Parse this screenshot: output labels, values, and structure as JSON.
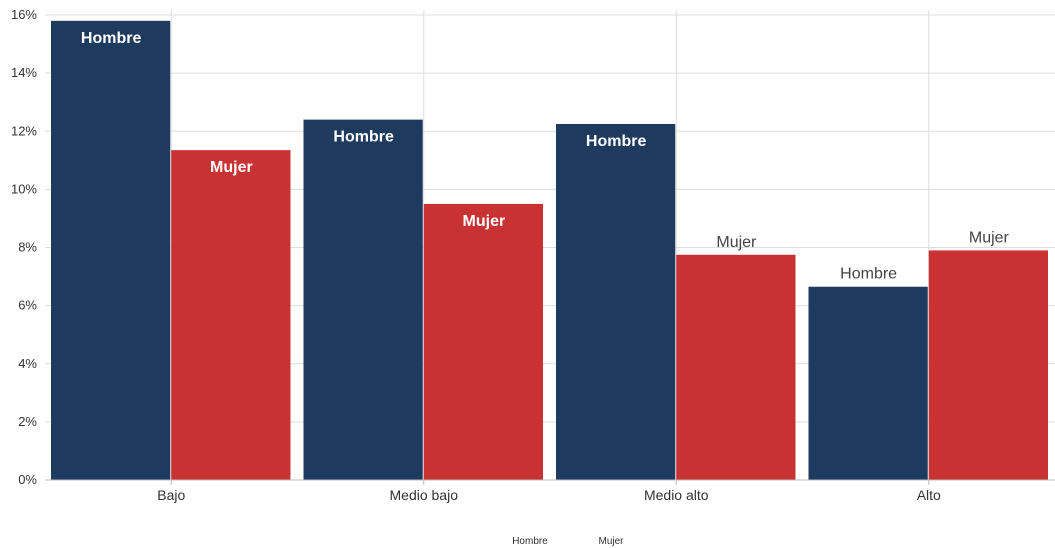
{
  "chart_data": {
    "type": "bar",
    "categories": [
      "Bajo",
      "Medio bajo",
      "Medio alto",
      "Alto"
    ],
    "series": [
      {
        "name": "Hombre",
        "color": "#1e3a5f",
        "values": [
          15.8,
          12.4,
          12.25,
          6.65
        ]
      },
      {
        "name": "Mujer",
        "color": "#c93232",
        "values": [
          11.35,
          9.5,
          7.75,
          7.9
        ]
      }
    ],
    "yticks": [
      "0%",
      "2%",
      "4%",
      "6%",
      "8%",
      "10%",
      "12%",
      "14%",
      "16%"
    ],
    "ylim": [
      0,
      16
    ],
    "grid": true,
    "legend_position": "bottom-center",
    "label_inside": [
      [
        true,
        true,
        true,
        false
      ],
      [
        true,
        true,
        false,
        false
      ]
    ]
  }
}
